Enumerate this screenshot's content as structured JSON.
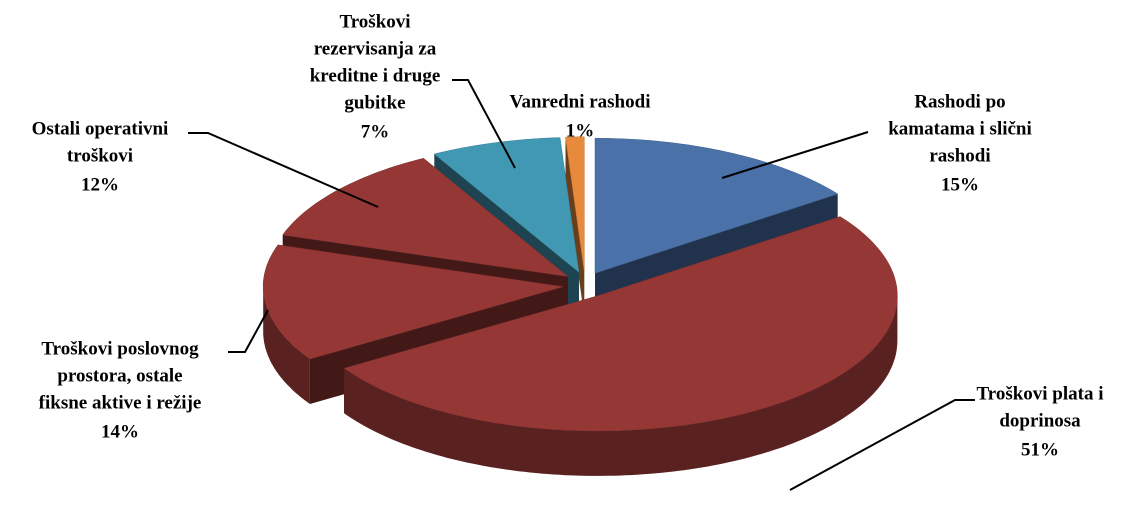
{
  "chart_data": {
    "type": "pie3d",
    "labels": [
      [
        "Rashodi po",
        "kamatama i slični",
        "rashodi"
      ],
      [
        "Troškovi plata i",
        "doprinosa"
      ],
      [
        "Troškovi poslovnog",
        "prostora, ostale",
        "fiksne aktive i režije"
      ],
      [
        "Ostali operativni",
        "troškovi"
      ],
      [
        "Troškovi",
        "rezervisanja za",
        "kreditne i druge",
        "gubitke"
      ],
      [
        "Vanredni  rashodi"
      ]
    ],
    "values": [
      15,
      51,
      14,
      12,
      7,
      1
    ],
    "value_labels": [
      "15%",
      "51%",
      "14%",
      "12%",
      "7%",
      "1%"
    ],
    "colors": [
      "#4a71a8",
      "#953735",
      "#953735",
      "#953735",
      "#4198b2",
      "#e88a3c"
    ]
  }
}
